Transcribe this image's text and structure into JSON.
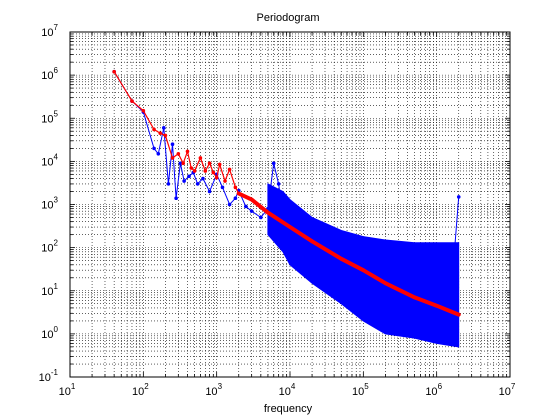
{
  "chart_data": {
    "type": "line",
    "title": "Periodogram",
    "xlabel": "frequency",
    "ylabel": "",
    "x_scale": "log",
    "y_scale": "log",
    "xlim": [
      10,
      10000000
    ],
    "ylim": [
      0.1,
      10000000
    ],
    "grid": true,
    "x_ticks": [
      {
        "base": "10",
        "exp": "1"
      },
      {
        "base": "10",
        "exp": "2"
      },
      {
        "base": "10",
        "exp": "3"
      },
      {
        "base": "10",
        "exp": "4"
      },
      {
        "base": "10",
        "exp": "5"
      },
      {
        "base": "10",
        "exp": "6"
      },
      {
        "base": "10",
        "exp": "7"
      }
    ],
    "y_ticks": [
      {
        "base": "10",
        "exp": "-1"
      },
      {
        "base": "10",
        "exp": "0"
      },
      {
        "base": "10",
        "exp": "1"
      },
      {
        "base": "10",
        "exp": "2"
      },
      {
        "base": "10",
        "exp": "3"
      },
      {
        "base": "10",
        "exp": "4"
      },
      {
        "base": "10",
        "exp": "5"
      },
      {
        "base": "10",
        "exp": "6"
      },
      {
        "base": "10",
        "exp": "7"
      }
    ],
    "series": [
      {
        "color": "#0000ff",
        "marker": "dot",
        "x": [
          40,
          70,
          100,
          140,
          160,
          190,
          220,
          250,
          280,
          320,
          360,
          420,
          480,
          550,
          650,
          800,
          1000,
          1200,
          1500,
          1800,
          2000,
          2500,
          3000,
          4000,
          5000,
          6000,
          7000,
          8000,
          10000,
          15000,
          20000,
          30000,
          50000,
          70000,
          100000,
          150000,
          200000,
          300000,
          500000,
          700000,
          1000000,
          1500000,
          2000000
        ],
        "values": [
          1200000,
          250000,
          140000,
          20000,
          15000,
          60000,
          3000,
          25000,
          1400,
          9000,
          3500,
          4500,
          5500,
          3000,
          4000,
          2000,
          5000,
          2500,
          1000,
          1400,
          2100,
          900,
          700,
          500,
          800,
          9000,
          3000,
          600,
          200,
          150,
          110,
          90,
          70,
          60,
          50,
          45,
          40,
          35,
          30,
          28,
          25,
          3,
          1500
        ],
        "envelope": {
          "x": [
            5000,
            8000,
            10000,
            20000,
            50000,
            100000,
            200000,
            500000,
            1000000,
            2000000
          ],
          "upper": [
            3000,
            2000,
            1300,
            500,
            250,
            180,
            150,
            130,
            130,
            130
          ],
          "lower": [
            200,
            80,
            40,
            15,
            5,
            2,
            1,
            0.8,
            0.6,
            0.5
          ]
        }
      },
      {
        "color": "#ff0000",
        "marker": "dot",
        "x": [
          40,
          70,
          100,
          140,
          170,
          200,
          250,
          300,
          350,
          400,
          450,
          500,
          600,
          700,
          800,
          900,
          1000,
          1100,
          1300,
          1500,
          1800,
          2000,
          3000,
          5000,
          10000,
          20000,
          50000,
          100000,
          200000,
          500000,
          1000000,
          2000000
        ],
        "values": [
          1200000,
          250000,
          150000,
          55000,
          45000,
          40000,
          12000,
          15000,
          9000,
          17000,
          7000,
          6000,
          12000,
          6000,
          9000,
          5500,
          4200,
          8500,
          3500,
          6500,
          2500,
          1800,
          1300,
          650,
          300,
          140,
          55,
          30,
          15,
          7,
          4.5,
          2.8
        ]
      }
    ]
  }
}
